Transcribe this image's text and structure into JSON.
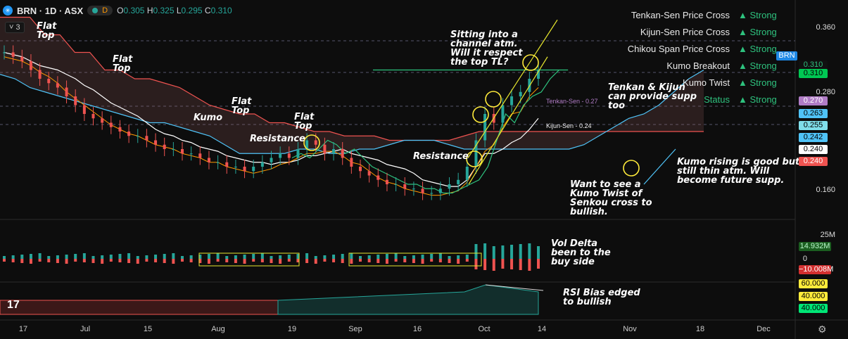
{
  "header": {
    "symbol": "BRN · 1D · ASX",
    "d_chip": "D",
    "o_label": "O",
    "o": "0.305",
    "h_label": "H",
    "h": "0.325",
    "l_label": "L",
    "l": "0.295",
    "c_label": "C",
    "c": "0.310",
    "collapse_count": "3",
    "icon": "asx-symbol-icon"
  },
  "status_table": [
    {
      "label": "Tenkan-Sen Price Cross",
      "value": "▲ Strong"
    },
    {
      "label": "Kijun-Sen Price Cross",
      "value": "▲ Strong"
    },
    {
      "label": "Chikou Span Price Cross",
      "value": "▲ Strong"
    },
    {
      "label": "Kumo Breakout",
      "value": "▲ Strong"
    },
    {
      "label": "Kumo Twist",
      "value": "▲ Strong"
    },
    {
      "label": "Status",
      "value": "▲ Strong"
    }
  ],
  "annotations": {
    "flat_top_1": "Flat\nTop",
    "flat_top_2": "Flat\nTop",
    "flat_top_3": "Flat\nTop",
    "flat_top_4": "Flat\nTop",
    "kumo": "Kumo",
    "resistance_1": "Resistance",
    "resistance_2": "Resistance",
    "channel": "Sitting into a\nchannel atm.\nWill it respect\nthe top TL?",
    "tenkan_kijun": "Tenkan & Kijun\ncan provide supp\ntoo",
    "kumo_twist": "Want to see a\nKumo Twist of\nSenkou cross to\nbullish.",
    "kumo_rising": "Kumo rising is good but\nstill thin atm. Will\nbecome future supp.",
    "vol_delta": "Vol Delta\nbeen to the\nbuy side",
    "rsi_bias": "RSI Bias edged\nto bullish",
    "tenkan_label": "Tenkan-Sen - 0.27",
    "kijun_label": "Kijun-Sen - 0.24"
  },
  "price_axis": {
    "ticks": [
      "0.360",
      "0.280",
      "0.160"
    ],
    "boxes": [
      {
        "text": "BRN",
        "bg": "#1e88e5",
        "fg": "#ffffff"
      },
      {
        "text": "0.310",
        "bg": "#111111",
        "fg": "#2ec27e"
      },
      {
        "text": "0.310",
        "bg": "#00c853",
        "fg": "#000000"
      },
      {
        "text": "0.270",
        "bg": "#b07cc6",
        "fg": "#ffffff"
      },
      {
        "text": "0.263",
        "bg": "#4fc3f7",
        "fg": "#000000"
      },
      {
        "text": "0.255",
        "bg": "#80deea",
        "fg": "#000000"
      },
      {
        "text": "0.242",
        "bg": "#4fc3f7",
        "fg": "#000000"
      },
      {
        "text": "0.240",
        "bg": "#ffffff",
        "fg": "#000000"
      },
      {
        "text": "0.240",
        "bg": "#ef5350",
        "fg": "#ffffff"
      }
    ]
  },
  "volume_axis": {
    "ticks": [
      "25M",
      "0"
    ],
    "boxes": [
      {
        "text": "14.932M",
        "bg": "#1b5e20",
        "fg": "#b9f6ca"
      },
      {
        "text": "−10.008M",
        "bg": "#d32f2f",
        "fg": "#ffffff"
      }
    ]
  },
  "rsi_axis": {
    "boxes": [
      {
        "text": "60.000",
        "bg": "#ffeb3b",
        "fg": "#000000"
      },
      {
        "text": "40.000",
        "bg": "#ffeb3b",
        "fg": "#000000"
      },
      {
        "text": "40.000",
        "bg": "#00e676",
        "fg": "#000000"
      }
    ]
  },
  "x_axis": [
    "17",
    "Jul",
    "15",
    "Aug",
    "19",
    "Sep",
    "16",
    "Oct",
    "14",
    "Nov",
    "18",
    "Dec"
  ],
  "colors": {
    "up": "#26a69a",
    "down": "#ef5350",
    "tenkan": "#b07cc6",
    "kijun": "#ffffff",
    "senkou_a": "#4fc3f7",
    "senkou_b": "#ef5350",
    "chikou": "#2ec27e",
    "trendline": "#e6e62e"
  },
  "chart_data": {
    "type": "line",
    "title": "BRN · 1D · ASX",
    "y_range": [
      0.14,
      0.38
    ],
    "closes": [
      0.33,
      0.325,
      0.32,
      0.31,
      0.3,
      0.295,
      0.29,
      0.28,
      0.27,
      0.26,
      0.255,
      0.25,
      0.245,
      0.24,
      0.235,
      0.235,
      0.23,
      0.225,
      0.22,
      0.22,
      0.215,
      0.215,
      0.21,
      0.205,
      0.205,
      0.2,
      0.2,
      0.195,
      0.2,
      0.205,
      0.21,
      0.215,
      0.21,
      0.22,
      0.23,
      0.225,
      0.215,
      0.22,
      0.21,
      0.2,
      0.195,
      0.19,
      0.185,
      0.18,
      0.18,
      0.175,
      0.175,
      0.17,
      0.17,
      0.175,
      0.18,
      0.185,
      0.2,
      0.23,
      0.26,
      0.25,
      0.27,
      0.28,
      0.285,
      0.3,
      0.31
    ],
    "series": [
      {
        "name": "Tenkan-Sen",
        "last": 0.27
      },
      {
        "name": "Kijun-Sen",
        "last": 0.24
      }
    ]
  }
}
